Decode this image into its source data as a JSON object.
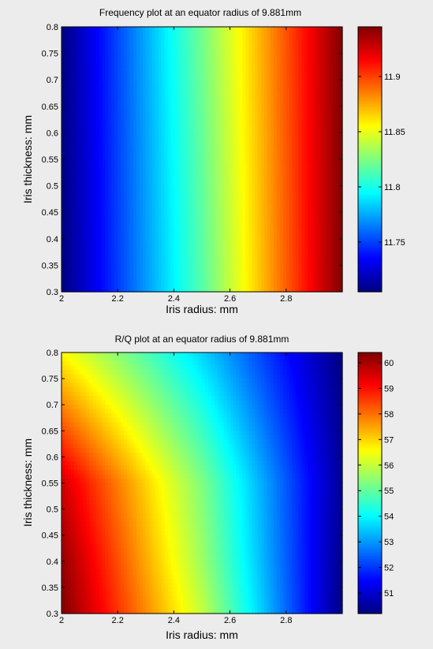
{
  "chart_data": [
    {
      "type": "heatmap",
      "title": "Frequency plot at an equator radius of 9.881mm",
      "xlabel": "Iris radius: mm",
      "ylabel": "Iris thickness: mm",
      "xlim": [
        2,
        3
      ],
      "ylim": [
        0.3,
        0.8
      ],
      "xticks": [
        "2",
        "2.2",
        "2.4",
        "2.6",
        "2.8"
      ],
      "xtick_values": [
        2,
        2.2,
        2.4,
        2.6,
        2.8
      ],
      "yticks": [
        "0.3",
        "0.35",
        "0.4",
        "0.45",
        "0.5",
        "0.55",
        "0.6",
        "0.65",
        "0.7",
        "0.75",
        "0.8"
      ],
      "ytick_values": [
        0.3,
        0.35,
        0.4,
        0.45,
        0.5,
        0.55,
        0.6,
        0.65,
        0.7,
        0.75,
        0.8
      ],
      "colorbar": {
        "range": [
          11.705,
          11.945
        ],
        "ticks": [
          "11.75",
          "11.8",
          "11.85",
          "11.9"
        ],
        "tick_values": [
          11.75,
          11.8,
          11.85,
          11.9
        ],
        "colormap": "jet"
      },
      "model": "frequency",
      "x": [
        2.0,
        2.5,
        3.0
      ],
      "y": [
        0.3,
        0.55,
        0.8
      ],
      "z": [
        [
          11.705,
          11.815,
          11.945
        ],
        [
          11.705,
          11.818,
          11.945
        ],
        [
          11.705,
          11.822,
          11.945
        ]
      ],
      "grid": false
    },
    {
      "type": "heatmap",
      "title": "R/Q plot at an equator radius of 9.881mm",
      "xlabel": "Iris radius: mm",
      "ylabel": "Iris thickness: mm",
      "xlim": [
        2,
        3
      ],
      "ylim": [
        0.3,
        0.8
      ],
      "xticks": [
        "2",
        "2.2",
        "2.4",
        "2.6",
        "2.8"
      ],
      "xtick_values": [
        2,
        2.2,
        2.4,
        2.6,
        2.8
      ],
      "yticks": [
        "0.3",
        "0.35",
        "0.4",
        "0.45",
        "0.5",
        "0.55",
        "0.6",
        "0.65",
        "0.7",
        "0.75",
        "0.8"
      ],
      "ytick_values": [
        0.3,
        0.35,
        0.4,
        0.45,
        0.5,
        0.55,
        0.6,
        0.65,
        0.7,
        0.75,
        0.8
      ],
      "colorbar": {
        "range": [
          50.2,
          60.4
        ],
        "ticks": [
          "51",
          "52",
          "53",
          "54",
          "55",
          "56",
          "57",
          "58",
          "59",
          "60"
        ],
        "tick_values": [
          51,
          52,
          53,
          54,
          55,
          56,
          57,
          58,
          59,
          60
        ],
        "colormap": "jet"
      },
      "model": "rq",
      "x": [
        2.0,
        2.5,
        3.0
      ],
      "y": [
        0.3,
        0.4,
        0.55,
        0.8
      ],
      "z": [
        [
          60.4,
          56.0,
          50.2
        ],
        [
          60.2,
          55.6,
          50.3
        ],
        [
          59.6,
          55.3,
          50.4
        ],
        [
          56.6,
          53.6,
          50.2
        ]
      ],
      "grid": false
    }
  ]
}
